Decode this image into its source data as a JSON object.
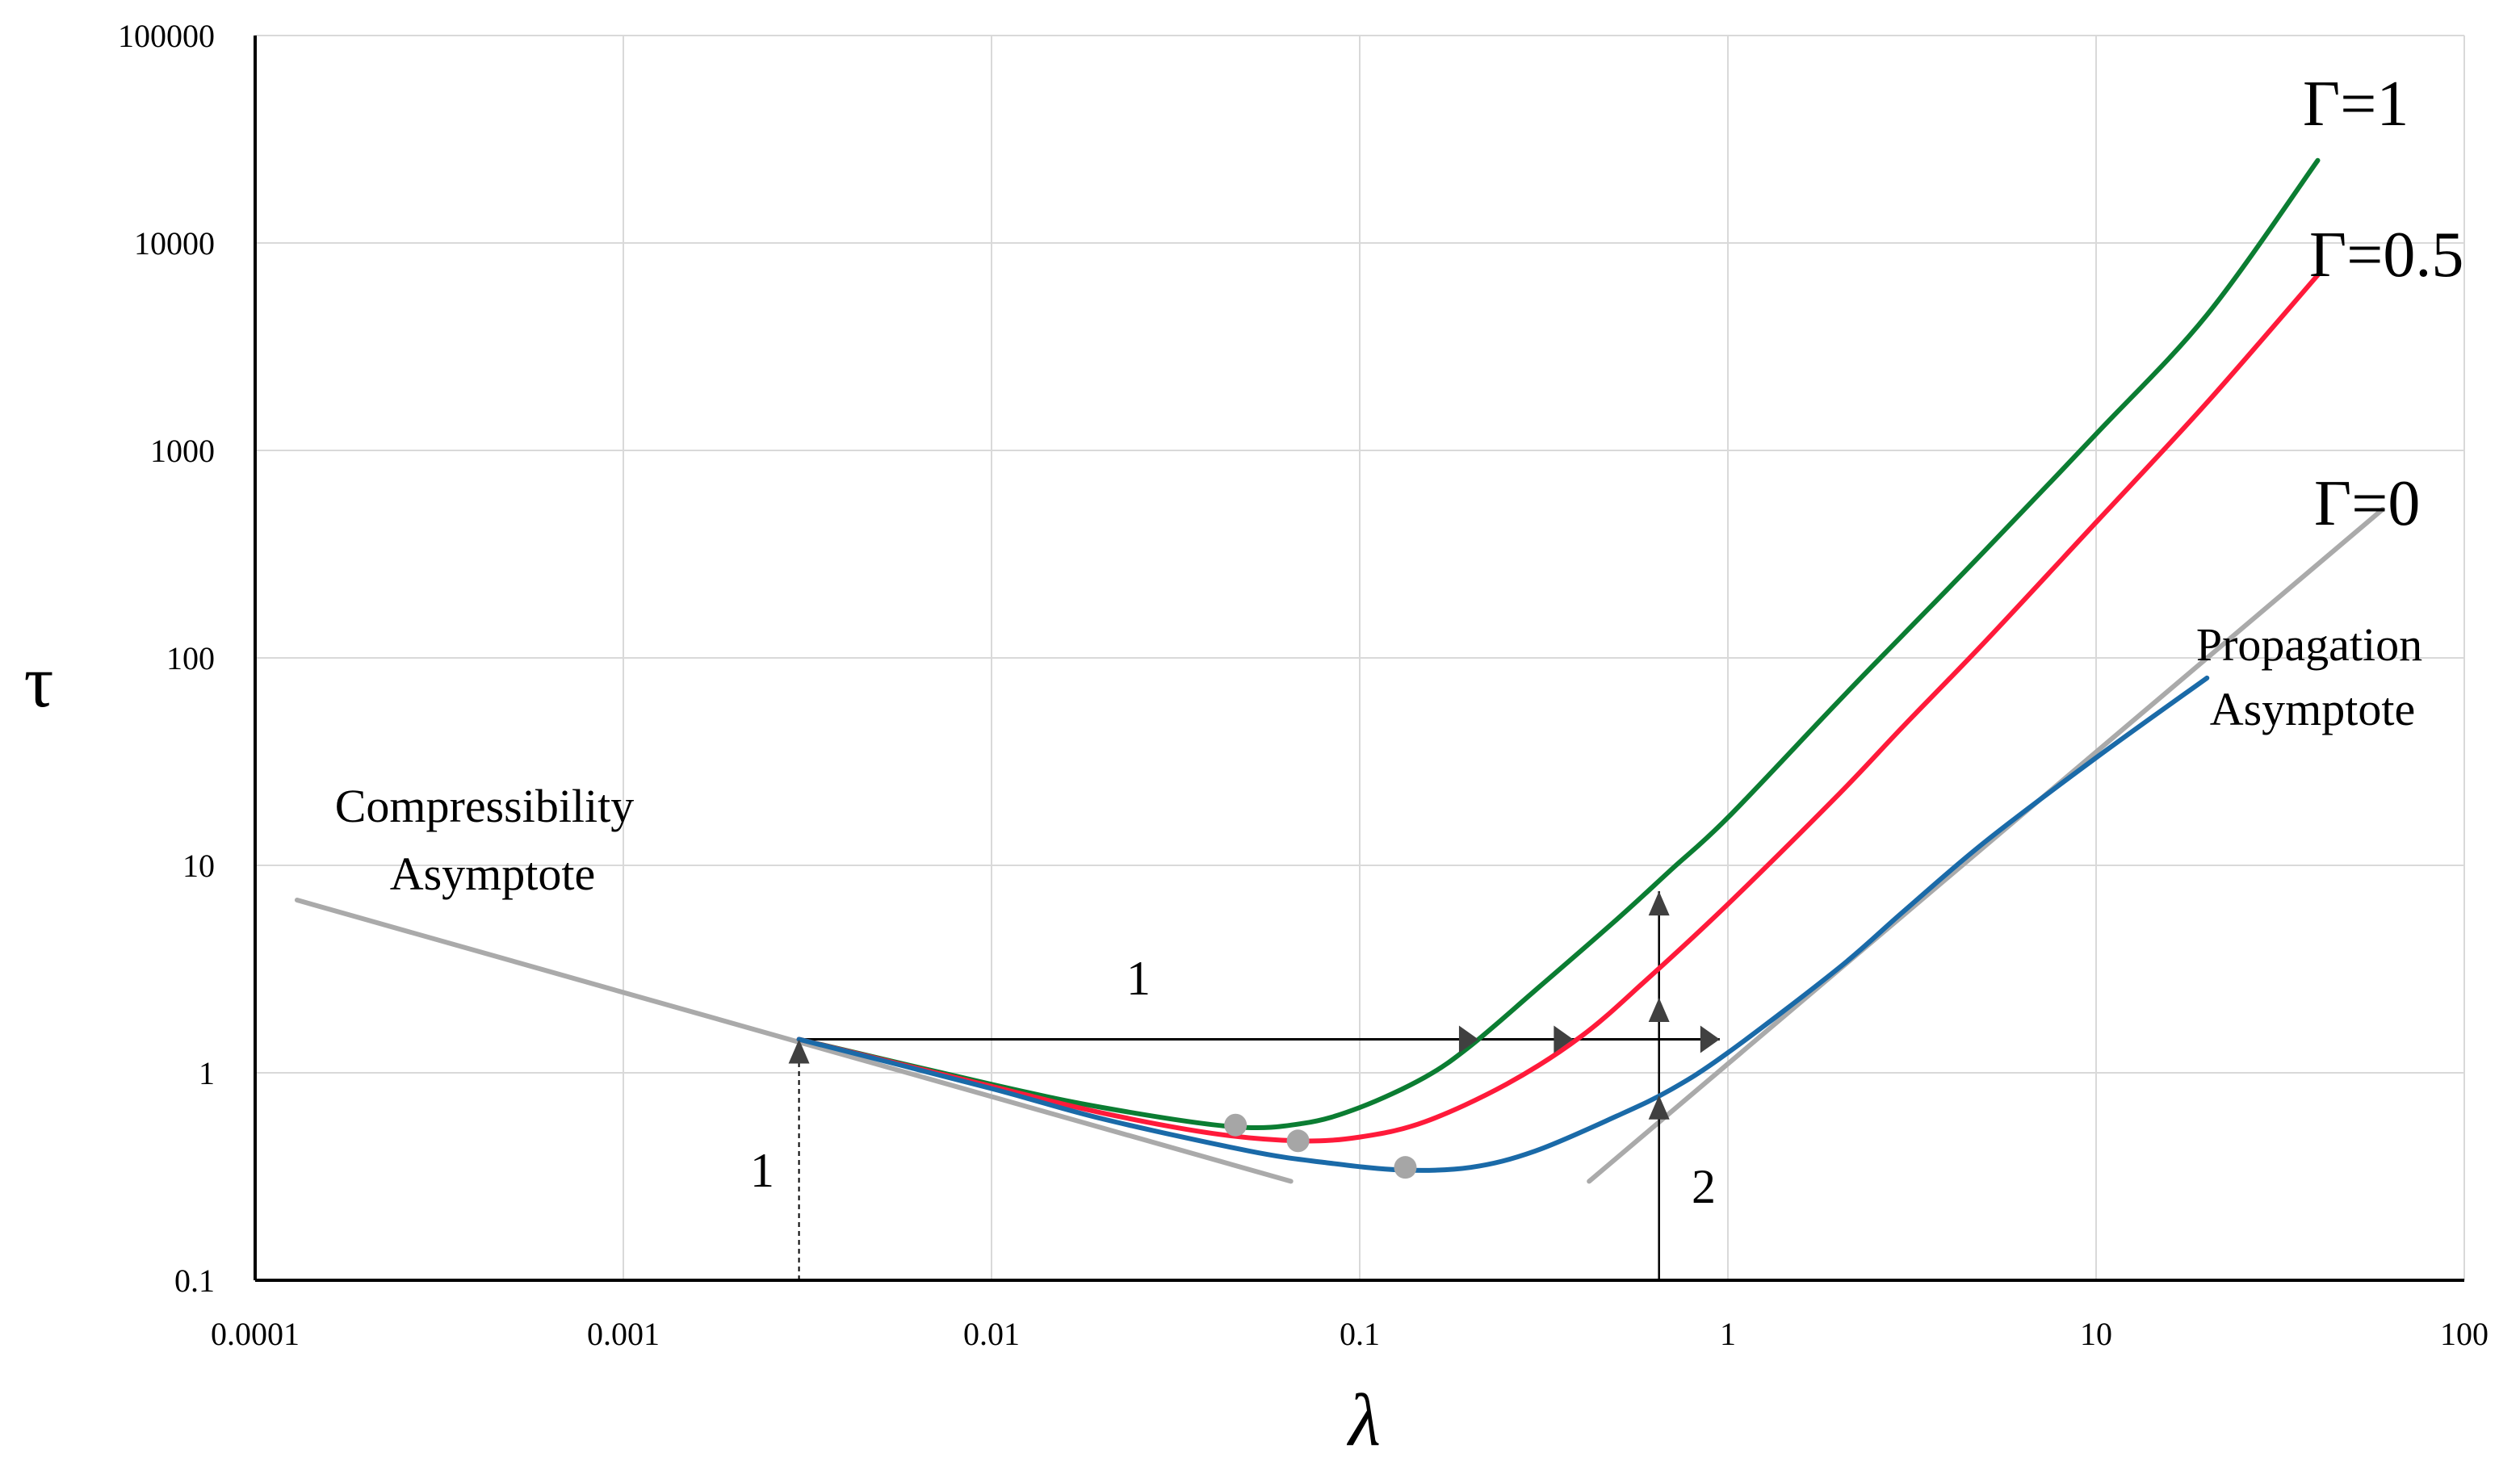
{
  "chart_data": {
    "type": "line",
    "title": "",
    "xlabel": "λ",
    "ylabel": "τ",
    "x_scale": "log",
    "y_scale": "log",
    "xlim": [
      0.0001,
      100
    ],
    "ylim": [
      0.1,
      100000
    ],
    "grid": true,
    "x_tick_labels": [
      "0.0001",
      "0.001",
      "0.01",
      "0.1",
      "1",
      "10",
      "100"
    ],
    "y_tick_labels": [
      "0.1",
      "1",
      "10",
      "100",
      "1000",
      "10000",
      "100000"
    ],
    "series": [
      {
        "name": "Γ=1",
        "color": "#0b7d32",
        "x": [
          0.003,
          0.01,
          0.02,
          0.045,
          0.07,
          0.1,
          0.15,
          0.2,
          0.3,
          0.5,
          0.7,
          1,
          2,
          3,
          5,
          10,
          20,
          40
        ],
        "y": [
          1.45,
          0.88,
          0.68,
          0.55,
          0.57,
          0.68,
          0.95,
          1.35,
          2.5,
          5.5,
          9.5,
          17,
          62,
          130,
          330,
          1200,
          4500,
          25000
        ]
      },
      {
        "name": "Γ=0.5",
        "color": "#ff1a3a",
        "x": [
          0.003,
          0.01,
          0.02,
          0.04,
          0.068,
          0.1,
          0.15,
          0.25,
          0.4,
          0.6,
          1,
          2,
          3,
          5,
          10,
          20,
          40
        ],
        "y": [
          1.45,
          0.86,
          0.64,
          0.51,
          0.47,
          0.49,
          0.58,
          0.88,
          1.5,
          2.8,
          6.5,
          22,
          47,
          120,
          450,
          1700,
          7000
        ]
      },
      {
        "name": "Γ=0",
        "color": "#1a6aa8",
        "x": [
          0.003,
          0.01,
          0.02,
          0.05,
          0.08,
          0.13,
          0.2,
          0.3,
          0.5,
          0.7,
          1,
          2,
          3,
          5,
          10,
          20
        ],
        "y": [
          1.45,
          0.84,
          0.6,
          0.42,
          0.37,
          0.34,
          0.35,
          0.42,
          0.62,
          0.83,
          1.25,
          3.2,
          6,
          13,
          33,
          80
        ]
      }
    ],
    "asymptotes": [
      {
        "name": "Compressibility Asymptote",
        "color": "#aaaaaa",
        "x": [
          0.00013,
          0.065
        ],
        "y": [
          6.8,
          0.3
        ]
      },
      {
        "name": "Propagation Asymptote",
        "color": "#aaaaaa",
        "x": [
          0.42,
          60
        ],
        "y": [
          0.3,
          520
        ]
      }
    ],
    "markers": [
      {
        "series": "Γ=1",
        "x": 0.046,
        "y": 0.56
      },
      {
        "series": "Γ=0.5",
        "x": 0.068,
        "y": 0.47
      },
      {
        "series": "Γ=0",
        "x": 0.133,
        "y": 0.35
      }
    ],
    "annotations": {
      "curve_labels": [
        "Γ=1",
        "Γ=0.5",
        "Γ=0"
      ],
      "compressibility_line1": "Compressibility",
      "compressibility_line2": "Asymptote",
      "propagation_line1": "Propagation",
      "propagation_line2": "Asymptote",
      "label_horizontal": "1",
      "label_vertical_left": "1",
      "label_vertical_right": "2"
    },
    "guides": {
      "dashed_vertical_x": 0.003,
      "dashed_vertical_y_top": 1.45,
      "horizontal_y": 1.45,
      "horizontal_x_end": 0.95,
      "horizontal_arrow_x": [
        0.21,
        0.38,
        0.95
      ],
      "solid_vertical_x": 0.65,
      "solid_vertical_y_top": 7.5,
      "vertical_arrow_y": [
        0.78,
        2.3,
        7.5
      ]
    }
  }
}
